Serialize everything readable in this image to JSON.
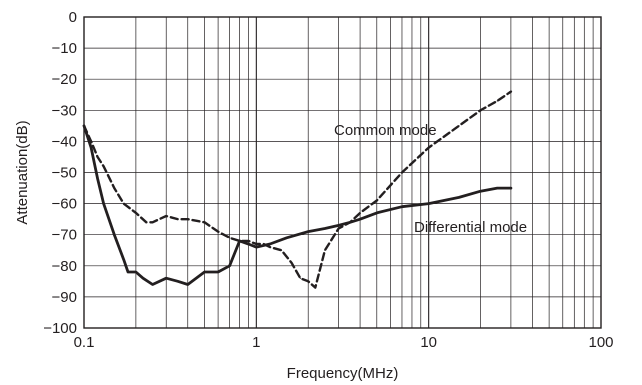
{
  "chart_data": {
    "type": "line",
    "title": "",
    "xlabel": "Frequency(MHz)",
    "ylabel": "Attenuation(dB)",
    "xscale": "log",
    "xlim": [
      0.1,
      100
    ],
    "ylim": [
      -100,
      0
    ],
    "x_ticks": [
      0.1,
      1,
      10,
      100
    ],
    "x_tick_labels": [
      "0.1",
      "1",
      "10",
      "100"
    ],
    "y_ticks": [
      0,
      -10,
      -20,
      -30,
      -40,
      -50,
      -60,
      -70,
      -80,
      -90,
      -100
    ],
    "y_tick_labels": [
      "0",
      "−10",
      "−20",
      "−30",
      "−40",
      "−50",
      "−60",
      "−70",
      "−80",
      "−90",
      "−100"
    ],
    "grid": true,
    "legend": "none",
    "series": [
      {
        "name": "Common mode",
        "style": "dashed",
        "color": "#231f20",
        "x": [
          0.1,
          0.11,
          0.12,
          0.13,
          0.15,
          0.17,
          0.2,
          0.23,
          0.25,
          0.3,
          0.35,
          0.4,
          0.5,
          0.6,
          0.7,
          0.8,
          0.9,
          1.0,
          1.1,
          1.2,
          1.4,
          1.6,
          1.8,
          2.0,
          2.2,
          2.5,
          3.0,
          3.5,
          4.0,
          5.0,
          7.0,
          10.0,
          15.0,
          20.0,
          25.0,
          30.0
        ],
        "values": [
          -35,
          -40,
          -45,
          -48,
          -55,
          -60,
          -63,
          -66,
          -66,
          -64,
          -65,
          -65,
          -66,
          -69,
          -71,
          -72,
          -72,
          -73,
          -73,
          -74,
          -75,
          -79,
          -84,
          -85,
          -87,
          -75,
          -68,
          -66,
          -63,
          -59,
          -50,
          -42,
          -35,
          -30,
          -27,
          -24
        ]
      },
      {
        "name": "Differential mode",
        "style": "solid",
        "color": "#231f20",
        "x": [
          0.1,
          0.11,
          0.12,
          0.13,
          0.15,
          0.17,
          0.18,
          0.2,
          0.22,
          0.25,
          0.3,
          0.35,
          0.4,
          0.5,
          0.6,
          0.7,
          0.8,
          0.9,
          1.0,
          1.2,
          1.5,
          2.0,
          2.5,
          3.0,
          3.5,
          4.0,
          5.0,
          7.0,
          10.0,
          15.0,
          20.0,
          25.0,
          30.0
        ],
        "values": [
          -35,
          -42,
          -52,
          -60,
          -70,
          -78,
          -82,
          -82,
          -84,
          -86,
          -84,
          -85,
          -86,
          -82,
          -82,
          -80,
          -72,
          -73,
          -74,
          -73,
          -71,
          -69,
          -68,
          -67,
          -66,
          -65,
          -63,
          -61,
          -60,
          -58,
          -56,
          -55,
          -55
        ]
      }
    ],
    "annotations": [
      "Common mode",
      "Differential mode"
    ]
  }
}
